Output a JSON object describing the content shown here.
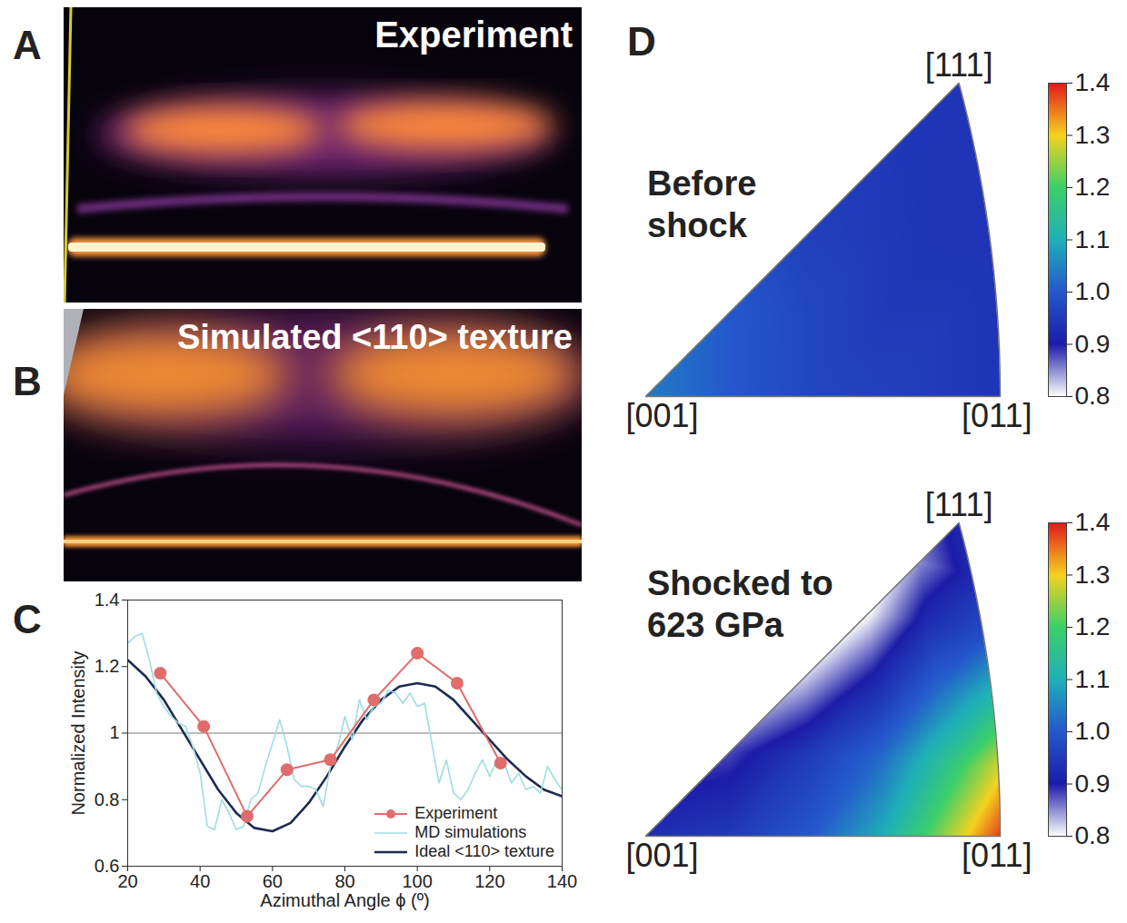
{
  "chart_data": [
    {
      "panel_label": "A",
      "type": "image",
      "title": "Experiment"
    },
    {
      "panel_label": "B",
      "type": "image",
      "title": "Simulated <110> texture"
    },
    {
      "panel_label": "C",
      "type": "line",
      "xlabel": "Azimuthal Angle ϕ (º)",
      "ylabel": "Normalized Intensity",
      "xlim": [
        20,
        140
      ],
      "xticks": [
        20,
        40,
        60,
        80,
        100,
        120,
        140
      ],
      "ylim": [
        0.6,
        1.4
      ],
      "yticks": [
        0.6,
        0.8,
        1,
        1.2,
        1.4
      ],
      "grid": false,
      "legend": "lower right",
      "reference_y": 1,
      "series": [
        {
          "name": "Experiment",
          "color": "#e06c6c",
          "marker": "circle",
          "line_style": "solid",
          "x": [
            29,
            41,
            53,
            64,
            76,
            88,
            100,
            111,
            123
          ],
          "values": [
            1.18,
            1.02,
            0.75,
            0.89,
            0.92,
            1.1,
            1.24,
            1.15,
            0.91
          ],
          "errors": [
            0.015,
            0.015,
            0.015,
            0.015,
            0.015,
            0.015,
            0.015,
            0.015,
            0.015
          ]
        },
        {
          "name": "MD simulations",
          "color": "#9fdde3",
          "line_style": "solid",
          "x": [
            20,
            22,
            24,
            26,
            28,
            30,
            32,
            34,
            36,
            38,
            40,
            42,
            44,
            46,
            48,
            50,
            52,
            54,
            56,
            58,
            60,
            62,
            64,
            66,
            68,
            70,
            72,
            74,
            76,
            78,
            80,
            82,
            84,
            86,
            88,
            90,
            92,
            94,
            96,
            98,
            100,
            102,
            104,
            106,
            108,
            110,
            112,
            114,
            116,
            118,
            120,
            122,
            124,
            126,
            128,
            130,
            132,
            134,
            136,
            138,
            140
          ],
          "values": [
            1.27,
            1.29,
            1.3,
            1.22,
            1.12,
            1.08,
            1.05,
            1.03,
            1.02,
            0.96,
            0.88,
            0.72,
            0.71,
            0.8,
            0.76,
            0.71,
            0.72,
            0.8,
            0.82,
            0.9,
            0.97,
            1.04,
            0.96,
            0.86,
            0.84,
            0.84,
            0.83,
            0.78,
            0.9,
            0.96,
            1.05,
            0.98,
            1.1,
            1.04,
            1.08,
            1.09,
            1.13,
            1.12,
            1.09,
            1.12,
            1.08,
            1.09,
            0.97,
            0.85,
            0.92,
            0.82,
            0.8,
            0.83,
            0.88,
            0.92,
            0.87,
            0.92,
            0.91,
            0.85,
            0.88,
            0.83,
            0.84,
            0.82,
            0.9,
            0.86,
            0.83
          ]
        },
        {
          "name": "Ideal <110> texture",
          "color": "#1c2b4f",
          "line_style": "solid",
          "x": [
            20,
            25,
            30,
            35,
            40,
            45,
            50,
            55,
            60,
            65,
            70,
            75,
            80,
            85,
            90,
            95,
            100,
            105,
            110,
            115,
            120,
            125,
            130,
            135,
            140
          ],
          "values": [
            1.22,
            1.17,
            1.1,
            1.01,
            0.92,
            0.83,
            0.76,
            0.715,
            0.705,
            0.73,
            0.79,
            0.87,
            0.96,
            1.04,
            1.1,
            1.14,
            1.15,
            1.14,
            1.1,
            1.04,
            0.98,
            0.92,
            0.87,
            0.83,
            0.81
          ]
        }
      ]
    },
    {
      "panel_label": "D",
      "type": "pole_figure",
      "corner_labels": [
        "[001]",
        "[011]",
        "[111]"
      ],
      "corner_directions": [
        [
          0,
          0,
          1
        ],
        [
          0,
          1,
          1
        ],
        [
          1,
          1,
          1
        ]
      ],
      "figures": [
        {
          "title": "Before shock",
          "directions": [
            [
              0,
              0,
              1
            ],
            [
              0,
              0.2,
              1
            ],
            [
              0.2,
              0.2,
              1
            ],
            [
              0,
              0.4,
              1
            ],
            [
              0.2,
              0.4,
              1
            ],
            [
              0.4,
              0.4,
              1
            ],
            [
              0,
              0.6,
              1
            ],
            [
              0.2,
              0.6,
              1
            ],
            [
              0.4,
              0.6,
              1
            ],
            [
              0.6,
              0.6,
              1
            ],
            [
              0,
              0.8,
              1
            ],
            [
              0.2,
              0.8,
              1
            ],
            [
              0.4,
              0.8,
              1
            ],
            [
              0.6,
              0.8,
              1
            ],
            [
              0.8,
              0.8,
              1
            ],
            [
              0,
              1,
              1
            ],
            [
              0.2,
              1,
              1
            ],
            [
              0.4,
              1,
              1
            ],
            [
              0.6,
              1,
              1
            ],
            [
              0.8,
              1,
              1
            ],
            [
              1,
              1,
              1
            ]
          ],
          "values": [
            1.04,
            1.0,
            1.0,
            0.97,
            0.97,
            0.96,
            0.96,
            0.95,
            0.95,
            0.95,
            0.95,
            0.95,
            0.94,
            0.94,
            0.94,
            0.94,
            0.94,
            0.94,
            0.94,
            0.94,
            0.94
          ],
          "colorbar_range": [
            0.8,
            1.4
          ],
          "colorbar_ticks": [
            0.8,
            0.9,
            {
              "value": 1,
              "label": "1.0"
            },
            1.1,
            1.2,
            1.3,
            1.4
          ]
        },
        {
          "title": "Shocked to 623 GPa",
          "directions": [
            [
              0,
              0,
              1
            ],
            [
              0,
              0.2,
              1
            ],
            [
              0.2,
              0.2,
              1
            ],
            [
              0,
              0.4,
              1
            ],
            [
              0.2,
              0.4,
              1
            ],
            [
              0.4,
              0.4,
              1
            ],
            [
              0,
              0.6,
              1
            ],
            [
              0.2,
              0.6,
              1
            ],
            [
              0.4,
              0.6,
              1
            ],
            [
              0.6,
              0.6,
              1
            ],
            [
              0,
              0.8,
              1
            ],
            [
              0.2,
              0.8,
              1
            ],
            [
              0.4,
              0.8,
              1
            ],
            [
              0.6,
              0.8,
              1
            ],
            [
              0.8,
              0.8,
              1
            ],
            [
              0,
              1,
              1
            ],
            [
              0.2,
              1,
              1
            ],
            [
              0.4,
              1,
              1
            ],
            [
              0.6,
              1,
              1
            ],
            [
              0.8,
              1,
              1
            ],
            [
              1,
              1,
              1
            ]
          ],
          "values": [
            0.93,
            0.95,
            0.88,
            1.0,
            0.95,
            0.82,
            1.1,
            1.02,
            0.92,
            0.8,
            1.25,
            1.15,
            1.02,
            0.93,
            0.85,
            1.38,
            1.28,
            1.12,
            0.98,
            0.92,
            0.92
          ],
          "colorbar_range": [
            0.8,
            1.4
          ],
          "colorbar_ticks": [
            0.8,
            0.9,
            {
              "value": 1,
              "label": "1.0"
            },
            1.1,
            1.2,
            1.3,
            1.4
          ]
        }
      ]
    }
  ]
}
